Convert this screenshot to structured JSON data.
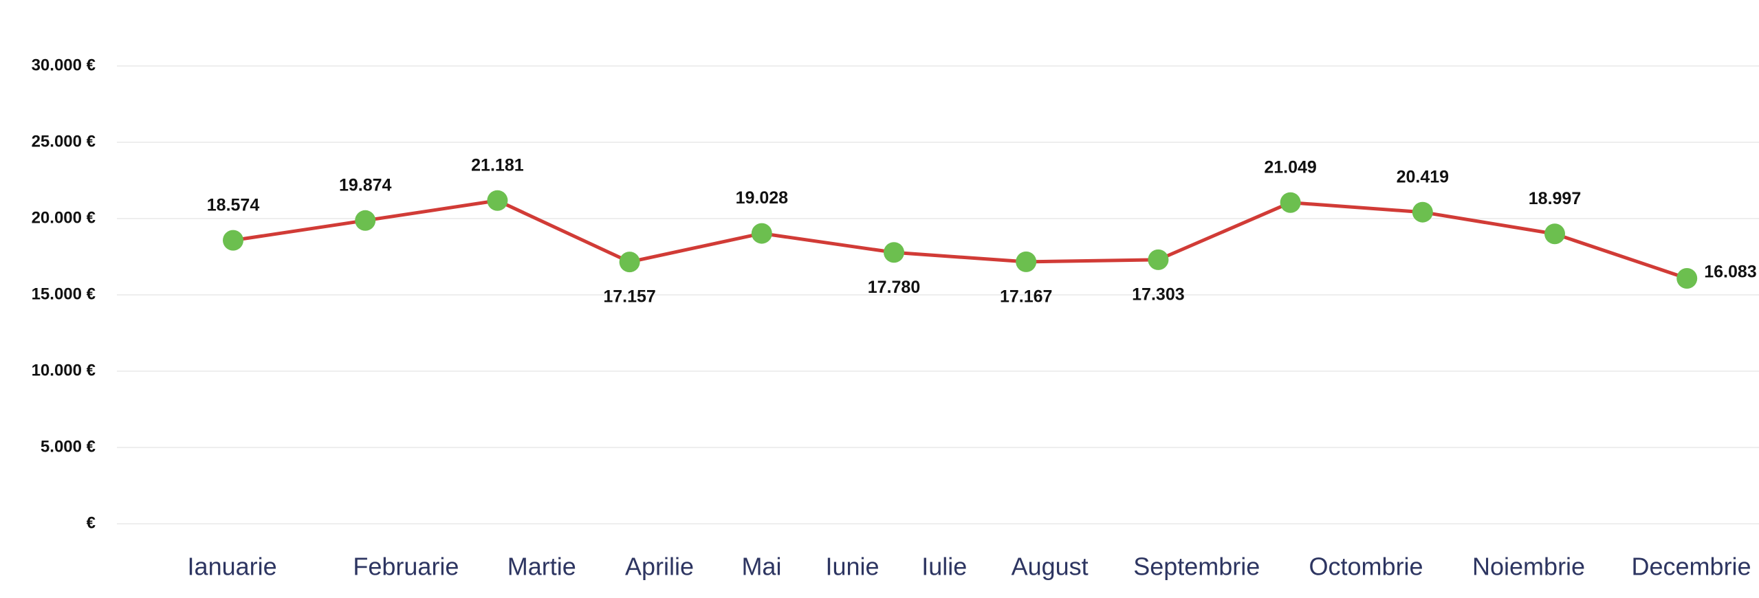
{
  "chart_data": {
    "type": "line",
    "categories": [
      "Ianuarie",
      "Februarie",
      "Martie",
      "Aprilie",
      "Mai",
      "Iunie",
      "Iulie",
      "August",
      "Septembrie",
      "Octombrie",
      "Noiembrie",
      "Decembrie"
    ],
    "series": [
      {
        "color": "#d13b36",
        "marker_color": "#6cbf4f",
        "values": [
          18574,
          19874,
          21181,
          17157,
          19028,
          17780,
          17167,
          17303,
          21049,
          20419,
          18997,
          16083
        ],
        "value_labels": [
          "18.574",
          "19.874",
          "21.181",
          "17.157",
          "19.028",
          "17.780",
          "17.167",
          "17.303",
          "21.049",
          "20.419",
          "18.997",
          "16.083"
        ]
      }
    ],
    "ylim": [
      0,
      30000
    ],
    "yticks": [
      {
        "value": 0,
        "label": "€"
      },
      {
        "value": 5000,
        "label": "5.000 €"
      },
      {
        "value": 10000,
        "label": "10.000 €"
      },
      {
        "value": 15000,
        "label": "15.000 €"
      },
      {
        "value": 20000,
        "label": "20.000 €"
      },
      {
        "value": 25000,
        "label": "25.000 €"
      },
      {
        "value": 30000,
        "label": "30.000 €"
      }
    ],
    "grid": true
  }
}
